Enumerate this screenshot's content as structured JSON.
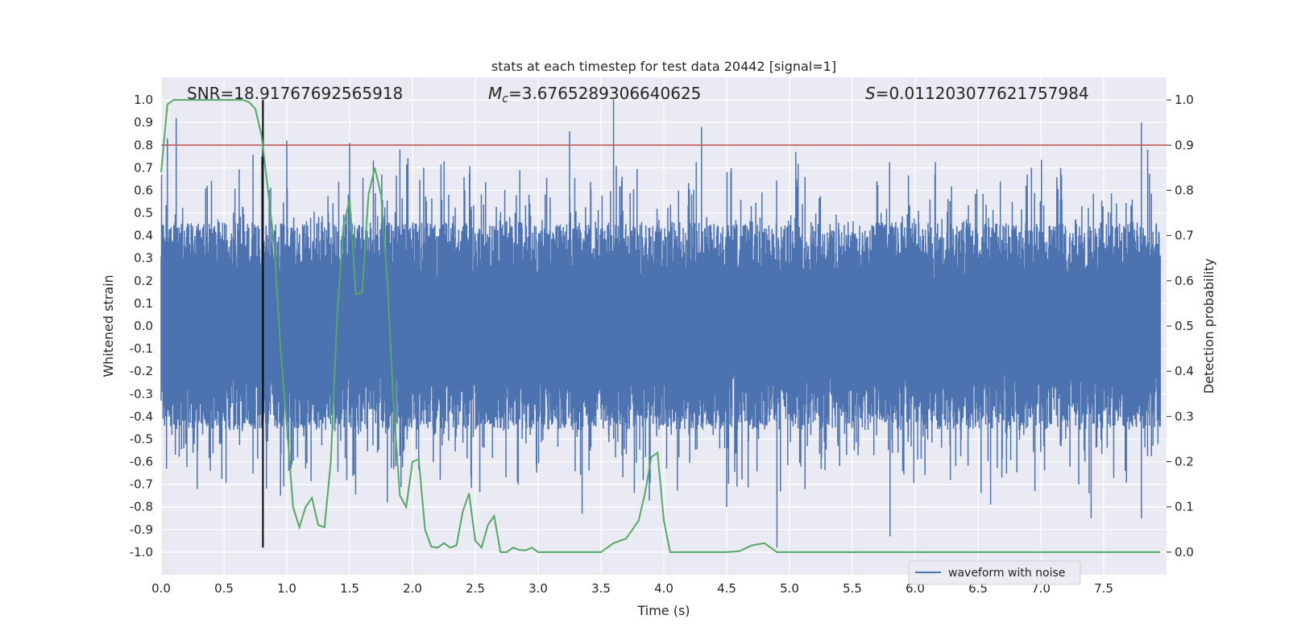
{
  "chart_data": {
    "type": "line",
    "title": "stats at each timestep for test data 20442 [signal=1]",
    "xlabel": "Time (s)",
    "ylabel_left": "Whitened strain",
    "ylabel_right": "Detection probability",
    "xlim": [
      0.0,
      8.0
    ],
    "ylim_left": [
      -1.1,
      1.1
    ],
    "ylim_right": [
      -0.05,
      1.05
    ],
    "x_ticks": [
      "0.0",
      "0.5",
      "1.0",
      "1.5",
      "2.0",
      "2.5",
      "3.0",
      "3.5",
      "4.0",
      "4.5",
      "5.0",
      "5.5",
      "6.0",
      "6.5",
      "7.0",
      "7.5"
    ],
    "y_ticks_left": [
      "1.0",
      "0.9",
      "0.8",
      "0.7",
      "0.6",
      "0.5",
      "0.4",
      "0.3",
      "0.2",
      "0.1",
      "0.0",
      "-0.1",
      "-0.2",
      "-0.3",
      "-0.4",
      "-0.5",
      "-0.6",
      "-0.7",
      "-0.8",
      "-0.9",
      "-1.0"
    ],
    "y_ticks_right": [
      "1.0",
      "0.9",
      "0.8",
      "0.7",
      "0.6",
      "0.5",
      "0.4",
      "0.3",
      "0.2",
      "0.1",
      "0.0"
    ],
    "grid": true,
    "legend_position": "lower-right",
    "annotations": {
      "snr": "SNR=18.91767692565918",
      "mc_symbol": "M",
      "mc_sub": "c",
      "mc_value": "=3.6765289306640625",
      "s_symbol": "S",
      "s_value": "=0.011203077621757984"
    },
    "threshold_line": {
      "axis": "right",
      "y": 0.9,
      "color": "#c44e52"
    },
    "marker_line": {
      "x": 0.81,
      "y_range": [
        -0.98,
        1.0
      ],
      "color": "#000000"
    },
    "waveform": {
      "name": "waveform with noise",
      "color": "#4c72b0",
      "axis": "left",
      "approx_range": [
        -0.98,
        1.0
      ],
      "peaks_high": [
        [
          0.05,
          0.83
        ],
        [
          0.12,
          0.92
        ],
        [
          0.8,
          0.75
        ],
        [
          1.0,
          0.82
        ],
        [
          1.5,
          0.81
        ],
        [
          1.9,
          0.78
        ],
        [
          3.25,
          0.86
        ],
        [
          3.6,
          1.0
        ],
        [
          4.3,
          0.88
        ],
        [
          5.05,
          0.77
        ],
        [
          7.8,
          0.9
        ],
        [
          7.85,
          0.78
        ]
      ],
      "peaks_low": [
        [
          0.95,
          -0.75
        ],
        [
          1.8,
          -0.78
        ],
        [
          3.35,
          -0.83
        ],
        [
          4.5,
          -0.8
        ],
        [
          4.9,
          -0.98
        ],
        [
          5.8,
          -0.93
        ],
        [
          6.6,
          -0.79
        ],
        [
          7.4,
          -0.85
        ],
        [
          7.8,
          -0.85
        ]
      ]
    },
    "probability_series": {
      "color": "#55a868",
      "axis": "right",
      "x": [
        0.0,
        0.05,
        0.1,
        0.2,
        0.3,
        0.4,
        0.5,
        0.6,
        0.65,
        0.7,
        0.75,
        0.8,
        0.85,
        0.9,
        0.95,
        1.0,
        1.05,
        1.1,
        1.15,
        1.2,
        1.25,
        1.3,
        1.35,
        1.4,
        1.45,
        1.5,
        1.55,
        1.6,
        1.65,
        1.7,
        1.75,
        1.8,
        1.85,
        1.9,
        1.95,
        2.0,
        2.05,
        2.1,
        2.15,
        2.2,
        2.25,
        2.3,
        2.35,
        2.4,
        2.45,
        2.5,
        2.55,
        2.6,
        2.65,
        2.7,
        2.75,
        2.8,
        2.85,
        2.9,
        2.95,
        3.0,
        3.1,
        3.2,
        3.3,
        3.4,
        3.5,
        3.6,
        3.7,
        3.8,
        3.85,
        3.9,
        3.95,
        4.0,
        4.05,
        4.1,
        4.15,
        4.2,
        4.25,
        4.3,
        4.4,
        4.5,
        4.6,
        4.7,
        4.8,
        4.9,
        5.0,
        5.05,
        5.1,
        5.2,
        5.3,
        5.4,
        5.5,
        5.6,
        5.7,
        5.8,
        5.9,
        6.0,
        6.2,
        6.4,
        6.6,
        6.8,
        7.0,
        7.2,
        7.4,
        7.6,
        7.7,
        7.8,
        7.9,
        7.95
      ],
      "y": [
        0.84,
        0.99,
        1.0,
        1.0,
        1.0,
        1.0,
        1.0,
        1.0,
        1.0,
        0.995,
        0.98,
        0.92,
        0.8,
        0.68,
        0.45,
        0.28,
        0.1,
        0.055,
        0.1,
        0.12,
        0.06,
        0.055,
        0.2,
        0.52,
        0.72,
        0.78,
        0.57,
        0.575,
        0.79,
        0.85,
        0.79,
        0.6,
        0.32,
        0.125,
        0.1,
        0.2,
        0.205,
        0.05,
        0.012,
        0.01,
        0.02,
        0.01,
        0.015,
        0.09,
        0.13,
        0.025,
        0.01,
        0.06,
        0.08,
        0.0,
        0.0,
        0.01,
        0.005,
        0.004,
        0.01,
        0.0,
        0.0,
        0.0,
        0.0,
        0.0,
        0.0,
        0.02,
        0.03,
        0.07,
        0.13,
        0.21,
        0.22,
        0.07,
        0.0,
        0.0,
        0.0,
        0.0,
        0.0,
        0.0,
        0.0,
        0.0,
        0.002,
        0.015,
        0.02,
        0.0,
        0.0,
        0.0,
        0.0,
        0.0,
        0.0,
        0.0,
        0.0,
        0.0,
        0.0,
        0.0,
        0.0,
        0.0,
        0.0,
        0.0,
        0.0,
        0.0,
        0.0,
        0.0,
        0.0,
        0.0,
        0.0,
        0.0,
        0.0,
        0.0
      ]
    }
  }
}
